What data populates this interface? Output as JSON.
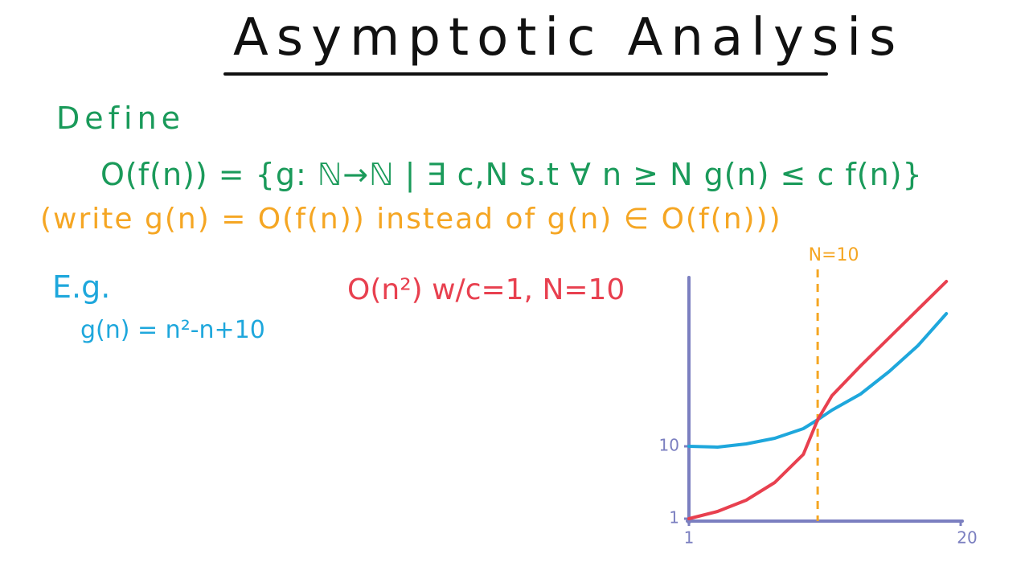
{
  "title": "Asymptotic Analysis",
  "define_label": "Define",
  "definition": "O(f(n)) = {g: ℕ→ℕ | ∃ c,N s.t ∀ n ≥ N  g(n) ≤ c f(n)}",
  "note": "(write g(n) = O(f(n)) instead of g(n) ∈ O(f(n)))",
  "example_label": "E.g.",
  "example_formula": "g(n) = n²-n+10",
  "claim": "O(n²)  w/c=1, N=10",
  "chart_data": {
    "type": "line",
    "x": [
      1,
      3,
      5,
      7,
      9,
      10,
      11,
      13,
      15,
      17,
      19
    ],
    "series": [
      {
        "color": "#1ea7dc",
        "values": [
          10,
          9.9,
          10.3,
          11,
          12.2,
          13.3,
          14.5,
          16.5,
          19.3,
          22.5,
          26.5
        ]
      },
      {
        "color": "#e8404f",
        "values": [
          1,
          1.9,
          3.3,
          5.5,
          9,
          13.3,
          16.3,
          20,
          23.5,
          27,
          30.5
        ]
      }
    ],
    "xlim": [
      1,
      20
    ],
    "xticks": [
      1,
      20
    ],
    "ylim": [
      0.7,
      31
    ],
    "yticks": [
      1,
      10
    ],
    "annotations": [
      {
        "x": 10,
        "label": "N=10",
        "color": "#f5a623"
      }
    ]
  }
}
